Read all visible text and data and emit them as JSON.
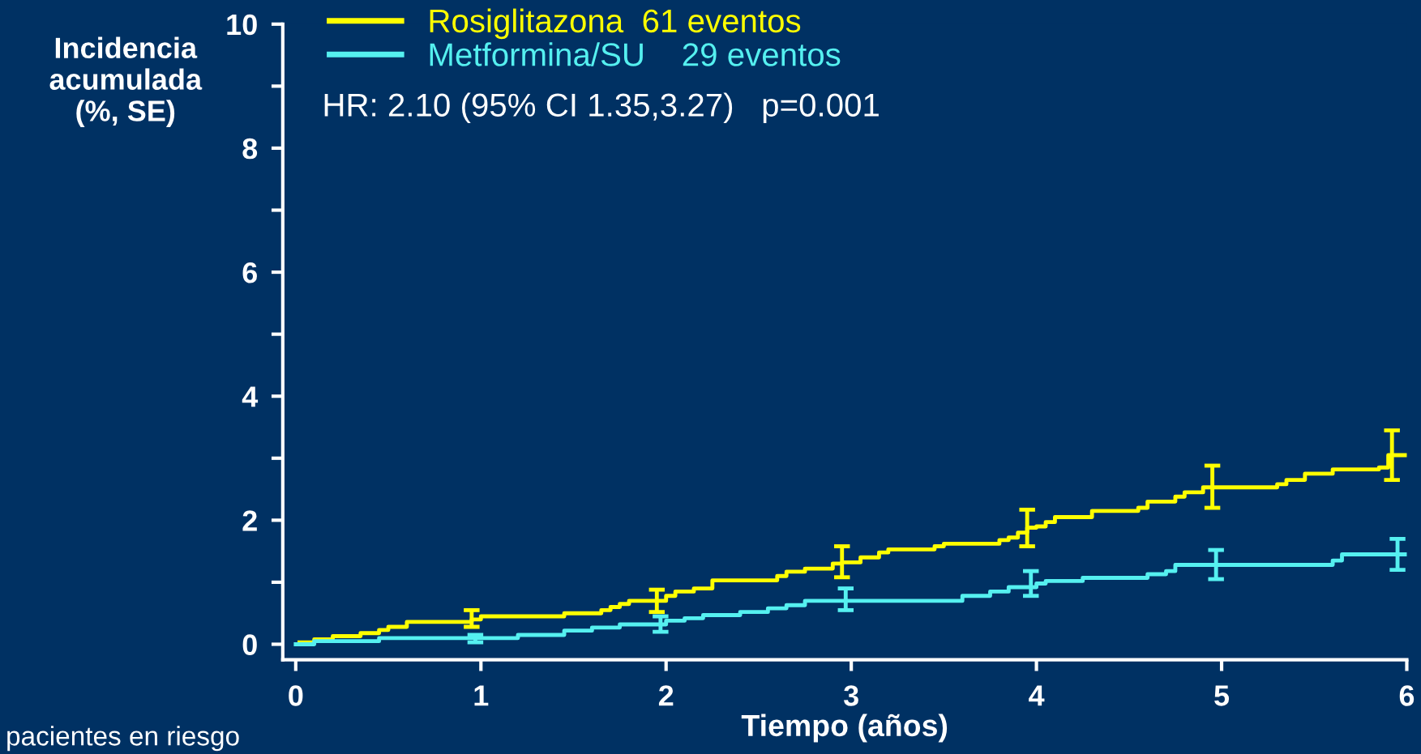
{
  "chart_data": {
    "type": "step",
    "xlabel": "Tiempo (años)",
    "ylabel": "Incidencia\nacumulada\n(%, SE)",
    "annotations": [
      "HR: 2.10 (95% CI 1.35,3.27)   p=0.001",
      "pacientes en riesgo"
    ],
    "xlim": [
      -0.07,
      6.0
    ],
    "xticks": [
      0,
      1,
      2,
      3,
      4,
      5,
      6
    ],
    "ylim": [
      -0.25,
      10
    ],
    "yticks": [
      0,
      {
        "value": 1,
        "label": null
      },
      2,
      {
        "value": 3,
        "label": null
      },
      4,
      {
        "value": 5,
        "label": null
      },
      6,
      {
        "value": 7,
        "label": null
      },
      8,
      {
        "value": 9,
        "label": null
      },
      10
    ],
    "grid": false,
    "legend": "top left",
    "line_style": "solid",
    "marker": "none",
    "series": [
      {
        "name": "Rosiglitazona  61 eventos",
        "color": "#ffff00",
        "x": [
          0.02,
          0.1,
          0.2,
          0.35,
          0.45,
          0.5,
          0.6,
          0.95,
          1.0,
          1.45,
          1.65,
          1.7,
          1.75,
          1.8,
          1.95,
          2.0,
          2.05,
          2.15,
          2.25,
          2.6,
          2.65,
          2.75,
          2.9,
          2.95,
          3.05,
          3.15,
          3.2,
          3.45,
          3.5,
          3.8,
          3.85,
          3.9,
          3.95,
          4.0,
          4.05,
          4.1,
          4.3,
          4.55,
          4.6,
          4.75,
          4.8,
          4.9,
          4.95,
          5.3,
          5.35,
          5.45,
          5.6,
          5.85,
          5.9,
          5.92,
          6.0
        ],
        "values": [
          0.03,
          0.08,
          0.13,
          0.18,
          0.23,
          0.28,
          0.36,
          0.4,
          0.45,
          0.5,
          0.55,
          0.6,
          0.65,
          0.7,
          0.7,
          0.78,
          0.85,
          0.9,
          1.03,
          1.1,
          1.17,
          1.22,
          1.3,
          1.32,
          1.4,
          1.48,
          1.53,
          1.58,
          1.62,
          1.68,
          1.72,
          1.8,
          1.88,
          1.9,
          1.97,
          2.05,
          2.15,
          2.2,
          2.3,
          2.38,
          2.45,
          2.53,
          2.53,
          2.58,
          2.65,
          2.75,
          2.82,
          2.85,
          3.05,
          3.05,
          3.05
        ],
        "errors": [
          null,
          null,
          null,
          null,
          null,
          null,
          null,
          [
            0.28,
            0.55
          ],
          null,
          null,
          null,
          null,
          null,
          null,
          [
            0.52,
            0.88
          ],
          null,
          null,
          null,
          null,
          null,
          null,
          null,
          null,
          [
            1.08,
            1.58
          ],
          null,
          null,
          null,
          null,
          null,
          null,
          null,
          null,
          [
            1.58,
            2.17
          ],
          null,
          null,
          null,
          null,
          null,
          null,
          null,
          null,
          null,
          [
            2.2,
            2.88
          ],
          null,
          null,
          null,
          null,
          null,
          null,
          [
            2.65,
            3.45
          ],
          null
        ]
      },
      {
        "name": "Metformina/SU    29 eventos",
        "color": "#55f0f0",
        "x": [
          0.0,
          0.1,
          0.45,
          0.97,
          1.2,
          1.45,
          1.6,
          1.75,
          1.97,
          2.0,
          2.1,
          2.2,
          2.4,
          2.55,
          2.65,
          2.75,
          2.97,
          3.6,
          3.75,
          3.85,
          3.97,
          4.0,
          4.05,
          4.25,
          4.6,
          4.7,
          4.75,
          4.97,
          5.6,
          5.65,
          5.95,
          6.0
        ],
        "values": [
          0.0,
          0.05,
          0.1,
          0.1,
          0.15,
          0.22,
          0.27,
          0.32,
          0.32,
          0.38,
          0.42,
          0.47,
          0.52,
          0.58,
          0.63,
          0.7,
          0.7,
          0.78,
          0.85,
          0.92,
          0.92,
          0.98,
          1.02,
          1.07,
          1.13,
          1.18,
          1.28,
          1.28,
          1.35,
          1.45,
          1.45,
          1.45
        ],
        "errors": [
          null,
          null,
          null,
          [
            0.03,
            0.15
          ],
          null,
          null,
          null,
          null,
          [
            0.2,
            0.45
          ],
          null,
          null,
          null,
          null,
          null,
          null,
          null,
          [
            0.55,
            0.9
          ],
          null,
          null,
          null,
          [
            0.78,
            1.18
          ],
          null,
          null,
          null,
          null,
          null,
          null,
          [
            1.05,
            1.52
          ],
          null,
          null,
          [
            1.2,
            1.7
          ],
          null
        ]
      }
    ]
  }
}
